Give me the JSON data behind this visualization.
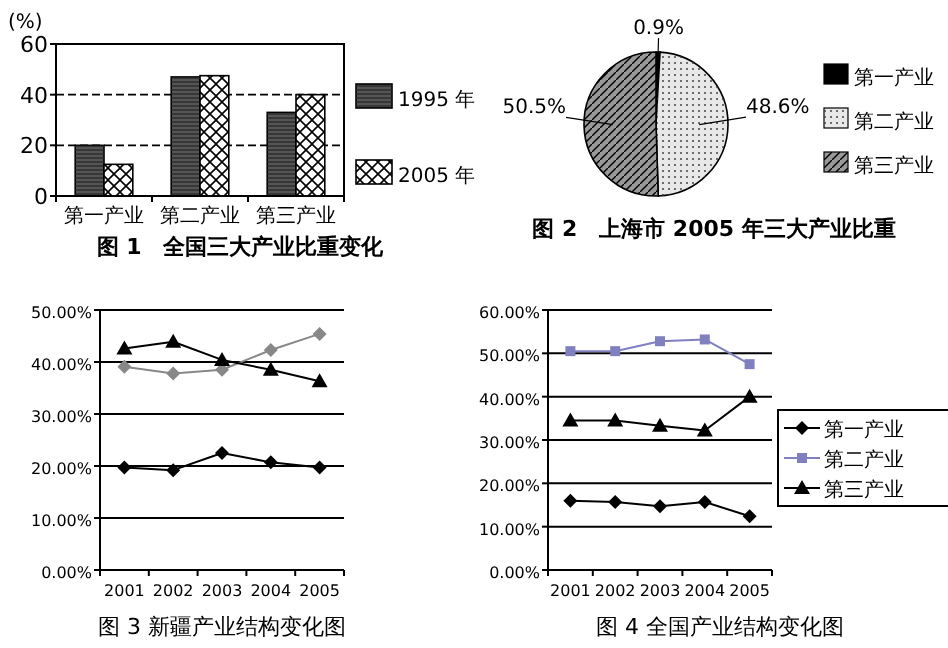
{
  "chart_data": [
    {
      "type": "bar",
      "title": "图 1　全国三大产业比重变化",
      "ylabel": "(%)",
      "categories": [
        "第一产业",
        "第二产业",
        "第三产业"
      ],
      "series": [
        {
          "name": "1995 年",
          "color": "#555555",
          "values": [
            20,
            47,
            33
          ]
        },
        {
          "name": "2005 年",
          "color": "#ffffff",
          "values": [
            12.5,
            47.5,
            40
          ]
        }
      ],
      "ylim": [
        0,
        60
      ],
      "yticks": [
        0,
        20,
        40,
        60
      ],
      "grid": "y",
      "legend": "right"
    },
    {
      "type": "pie",
      "title": "图 2　上海市 2005 年三大产业比重",
      "categories": [
        "第一产业",
        "第二产业",
        "第三产业"
      ],
      "values": [
        0.9,
        48.6,
        50.5
      ],
      "colors": [
        "#000000",
        "#e8e8e8",
        "#999999"
      ],
      "value_labels": [
        "0.9%",
        "48.6%",
        "50.5%"
      ],
      "legend": "right"
    },
    {
      "type": "line",
      "title": "图 3 新疆产业结构变化图",
      "categories": [
        "2001",
        "2002",
        "2003",
        "2004",
        "2005"
      ],
      "series": [
        {
          "color": "#000000",
          "marker": "diamond",
          "values": [
            19.7,
            19.2,
            22.5,
            20.7,
            19.7
          ]
        },
        {
          "color": "#888888",
          "marker": "diamond",
          "values": [
            39.1,
            37.8,
            38.5,
            42.3,
            45.4
          ]
        },
        {
          "color": "#000000",
          "marker": "triangle",
          "values": [
            42.6,
            43.9,
            40.4,
            38.5,
            36.3
          ]
        }
      ],
      "ylim": [
        0,
        50
      ],
      "yticks": [
        {
          "value": 0,
          "label": "0.00%"
        },
        {
          "value": 10,
          "label": "10.00%"
        },
        {
          "value": 20,
          "label": "20.00%"
        },
        {
          "value": 30,
          "label": "30.00%"
        },
        {
          "value": 40,
          "label": "40.00%"
        },
        {
          "value": 50,
          "label": "50.00%"
        }
      ],
      "grid": "y"
    },
    {
      "type": "line",
      "title": "图 4 全国产业结构变化图",
      "categories": [
        "2001",
        "2002",
        "2003",
        "2004",
        "2005"
      ],
      "series": [
        {
          "name": "第一产业",
          "color": "#000000",
          "marker": "diamond",
          "values": [
            16.0,
            15.7,
            14.7,
            15.7,
            12.4
          ]
        },
        {
          "name": "第二产业",
          "color": "#8080c0",
          "marker": "square",
          "values": [
            50.5,
            50.5,
            52.8,
            53.2,
            47.5
          ]
        },
        {
          "name": "第三产业",
          "color": "#000000",
          "marker": "triangle",
          "values": [
            34.5,
            34.5,
            33.3,
            32.2,
            40.0
          ]
        }
      ],
      "ylim": [
        0,
        60
      ],
      "yticks": [
        {
          "value": 0,
          "label": "0.00%"
        },
        {
          "value": 10,
          "label": "10.00%"
        },
        {
          "value": 20,
          "label": "20.00%"
        },
        {
          "value": 30,
          "label": "30.00%"
        },
        {
          "value": 40,
          "label": "40.00%"
        },
        {
          "value": 50,
          "label": "50.00%"
        },
        {
          "value": 60,
          "label": "60.00%"
        }
      ],
      "grid": "y",
      "legend": "right"
    }
  ]
}
